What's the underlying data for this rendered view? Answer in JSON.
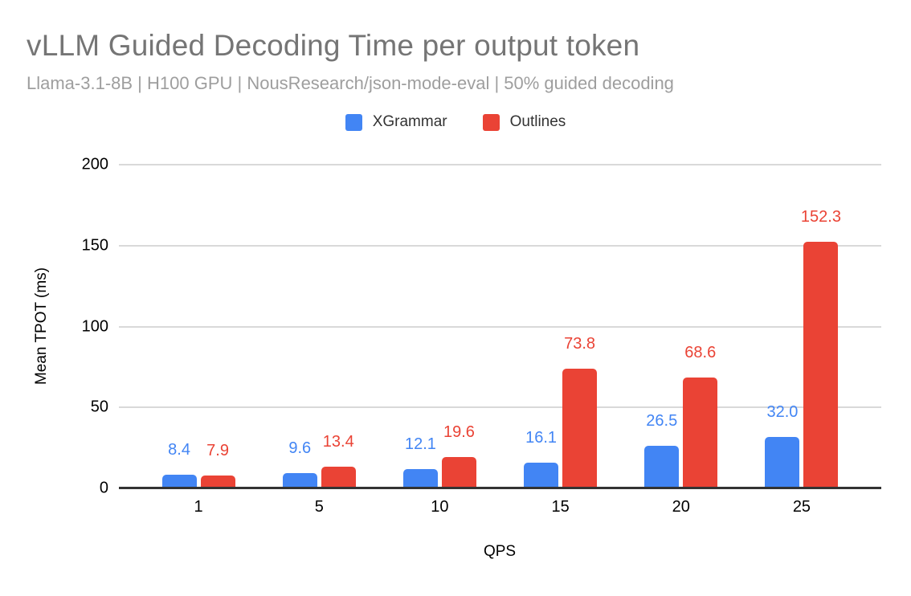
{
  "title": "vLLM Guided Decoding Time per output token",
  "subtitle": "Llama-3.1-8B | H100 GPU | NousResearch/json-mode-eval | 50% guided decoding",
  "chart_data": {
    "type": "bar",
    "title": "vLLM Guided Decoding Time per output token",
    "subtitle": "Llama-3.1-8B | H100 GPU | NousResearch/json-mode-eval | 50% guided decoding",
    "xlabel": "QPS",
    "ylabel": "Mean TPOT (ms)",
    "categories": [
      "1",
      "5",
      "10",
      "15",
      "20",
      "25"
    ],
    "series": [
      {
        "name": "XGrammar",
        "color": "#4285F4",
        "values": [
          8.4,
          9.6,
          12.1,
          16.1,
          26.5,
          32.0
        ],
        "labels": [
          "8.4",
          "9.6",
          "12.1",
          "16.1",
          "26.5",
          "32.0"
        ]
      },
      {
        "name": "Outlines",
        "color": "#EA4335",
        "values": [
          7.9,
          13.4,
          19.6,
          73.8,
          68.6,
          152.3
        ],
        "labels": [
          "7.9",
          "13.4",
          "19.6",
          "73.8",
          "68.6",
          "152.3"
        ]
      }
    ],
    "ylim": [
      0,
      200
    ],
    "yticks": [
      0,
      50,
      100,
      150,
      200
    ],
    "grid": true,
    "legend_position": "top",
    "value_labels_shown": true
  },
  "style_colors": {
    "grid": "#d9d9d9",
    "baseline": "#333333",
    "title_text": "#757575",
    "subtitle_text": "#9e9e9e",
    "axis_text": "#000000"
  }
}
